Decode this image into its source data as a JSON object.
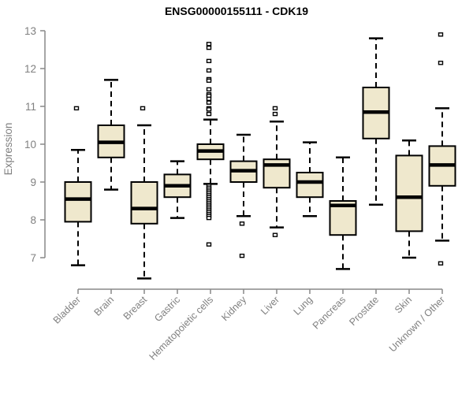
{
  "title": "ENSG00000155111 - CDK19",
  "chart_data": {
    "type": "boxplot",
    "title": "ENSG00000155111 - CDK19",
    "ylabel": "Expression",
    "ylim": [
      7,
      13
    ],
    "yticks": [
      7,
      8,
      9,
      10,
      11,
      12,
      13
    ],
    "grid": false,
    "categories": [
      "Bladder",
      "Brain",
      "Breast",
      "Gastric",
      "Hematopoietic cells",
      "Kidney",
      "Liver",
      "Lung",
      "Pancreas",
      "Prostate",
      "Skin",
      "Unknown / Other"
    ],
    "series": [
      {
        "category": "Bladder",
        "low": 6.8,
        "q1": 7.95,
        "median": 8.55,
        "q3": 9.0,
        "high": 9.85,
        "outliers": [
          10.95
        ]
      },
      {
        "category": "Brain",
        "low": 8.8,
        "q1": 9.65,
        "median": 10.05,
        "q3": 10.5,
        "high": 11.7,
        "outliers": []
      },
      {
        "category": "Breast",
        "low": 6.45,
        "q1": 7.9,
        "median": 8.3,
        "q3": 9.0,
        "high": 10.5,
        "outliers": [
          10.95
        ]
      },
      {
        "category": "Gastric",
        "low": 8.05,
        "q1": 8.6,
        "median": 8.9,
        "q3": 9.2,
        "high": 9.55,
        "outliers": []
      },
      {
        "category": "Hematopoietic cells",
        "low": 8.95,
        "q1": 9.6,
        "median": 9.82,
        "q3": 10.0,
        "high": 10.65,
        "outliers": [
          12.65,
          12.55,
          12.2,
          11.95,
          11.72,
          11.68,
          11.45,
          11.32,
          11.28,
          11.2,
          11.1,
          10.95,
          10.92,
          10.8,
          8.9,
          8.85,
          8.8,
          8.75,
          8.7,
          8.65,
          8.6,
          8.55,
          8.5,
          8.45,
          8.4,
          8.35,
          8.3,
          8.25,
          8.2,
          8.15,
          8.1,
          8.05,
          7.35
        ]
      },
      {
        "category": "Kidney",
        "low": 8.1,
        "q1": 9.0,
        "median": 9.3,
        "q3": 9.55,
        "high": 10.25,
        "outliers": [
          7.9,
          7.05
        ]
      },
      {
        "category": "Liver",
        "low": 7.8,
        "q1": 8.85,
        "median": 9.45,
        "q3": 9.6,
        "high": 10.6,
        "outliers": [
          10.95,
          10.8,
          7.6
        ]
      },
      {
        "category": "Lung",
        "low": 8.1,
        "q1": 8.6,
        "median": 9.0,
        "q3": 9.25,
        "high": 10.05,
        "outliers": []
      },
      {
        "category": "Pancreas",
        "low": 6.7,
        "q1": 7.6,
        "median": 8.38,
        "q3": 8.5,
        "high": 9.65,
        "outliers": []
      },
      {
        "category": "Prostate",
        "low": 8.4,
        "q1": 10.15,
        "median": 10.85,
        "q3": 11.5,
        "high": 12.8,
        "outliers": []
      },
      {
        "category": "Skin",
        "low": 7.0,
        "q1": 7.7,
        "median": 8.6,
        "q3": 9.7,
        "high": 10.1,
        "outliers": []
      },
      {
        "category": "Unknown / Other",
        "low": 7.45,
        "q1": 8.9,
        "median": 9.45,
        "q3": 9.95,
        "high": 10.95,
        "outliers": [
          12.9,
          12.15,
          6.85
        ]
      }
    ],
    "colors": {
      "box_fill": "#EFE8CD",
      "box_border": "#000000",
      "median": "#000000",
      "whisker": "#000000",
      "outlier_fill": "#ffffff",
      "axis": "#888888",
      "tick_label": "#808080",
      "title": "#000000",
      "background": "#ffffff"
    }
  }
}
